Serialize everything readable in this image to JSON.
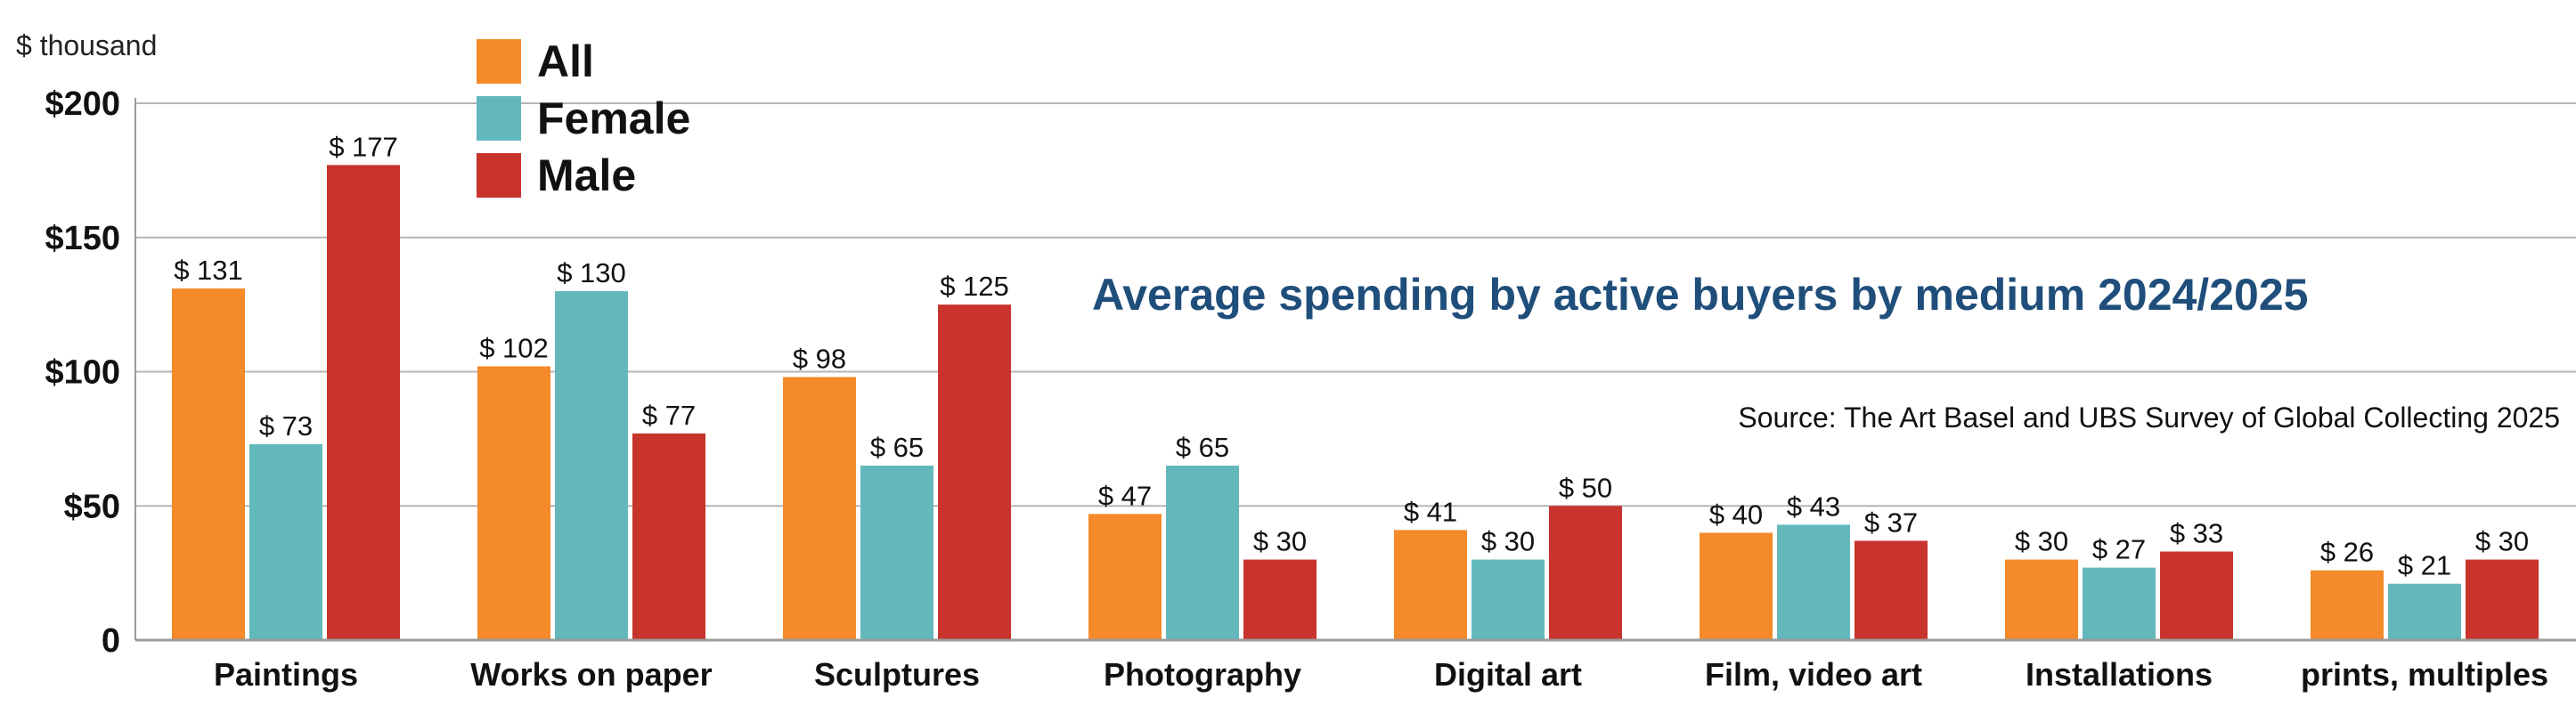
{
  "chart_data": {
    "type": "bar",
    "title": "Average spending by active buyers by medium 2024/2025",
    "source": "Source: The Art Basel and UBS Survey of Global Collecting 2025",
    "ylabel": "$ thousand",
    "ylim": [
      0,
      200
    ],
    "yticks": [
      {
        "value": 0,
        "label": "0"
      },
      {
        "value": 50,
        "label": "$50"
      },
      {
        "value": 100,
        "label": "$100"
      },
      {
        "value": 150,
        "label": "$150"
      },
      {
        "value": 200,
        "label": "$200"
      }
    ],
    "grid": true,
    "legend_position": "top-left",
    "categories": [
      "Paintings",
      "Works on paper",
      "Sculptures",
      "Photography",
      "Digital art",
      "Film, video art",
      "Installations",
      "prints, multiples"
    ],
    "series": [
      {
        "name": "All",
        "color": "#f48a29",
        "values": [
          131,
          102,
          98,
          47,
          41,
          40,
          30,
          26
        ]
      },
      {
        "name": "Female",
        "color": "#63b8bc",
        "values": [
          73,
          130,
          65,
          65,
          30,
          43,
          27,
          21
        ]
      },
      {
        "name": "Male",
        "color": "#c8342c",
        "values": [
          177,
          77,
          125,
          30,
          50,
          37,
          33,
          30
        ]
      }
    ],
    "value_prefix": "$ "
  }
}
